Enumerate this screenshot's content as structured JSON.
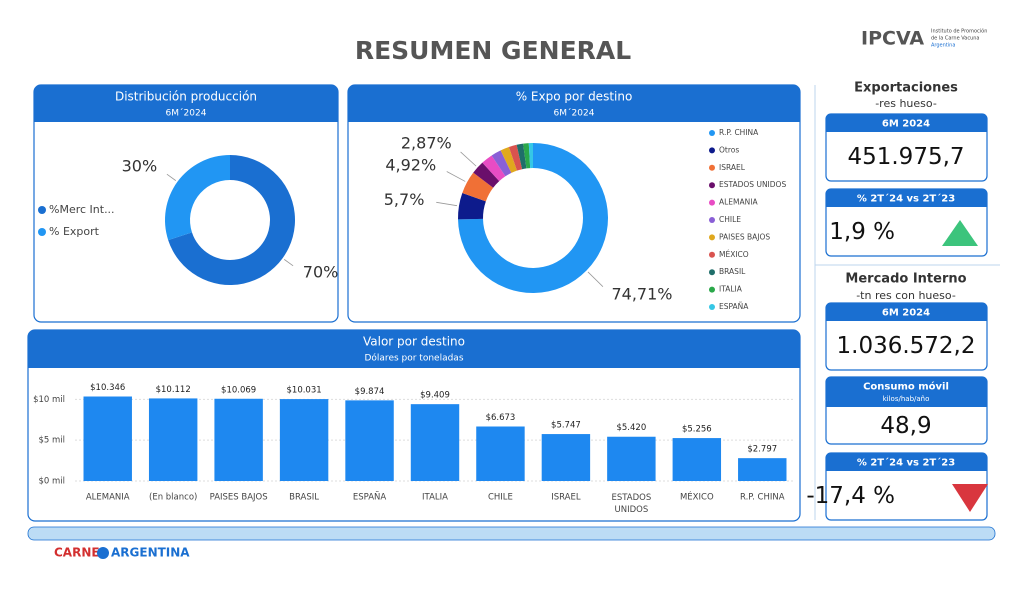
{
  "header": {
    "title": "RESUMEN GENERAL",
    "logo": "IPCVA",
    "logo_subtitle": [
      "Instituto de Promoción",
      "de la Carne Vacuna",
      "Argentina"
    ]
  },
  "chart_data": [
    {
      "type": "donut",
      "title": "Distribución producción",
      "subtitle": "6M´2024",
      "legend": "left",
      "categories": [
        "%Merc Int...",
        "% Export"
      ],
      "values": [
        70,
        30
      ],
      "value_labels": [
        "70%",
        "30%"
      ],
      "colors": [
        "#1a6fd1",
        "#2196f3"
      ]
    },
    {
      "type": "donut",
      "title": "% Expo por destino",
      "subtitle": "6M´2024",
      "legend": "right",
      "categories": [
        "R.P. CHINA",
        "Otros",
        "ISRAEL",
        "ESTADOS UNIDOS",
        "ALEMANIA",
        "CHILE",
        "PAISES BAJOS",
        "MÉXICO",
        "BRASIL",
        "ITALIA",
        "ESPAÑA"
      ],
      "values": [
        74.71,
        5.7,
        4.92,
        2.87,
        2.5,
        2.2,
        1.9,
        1.7,
        1.4,
        1.2,
        0.9
      ],
      "value_labels": [
        "74,71%",
        "5,7%",
        "4,92%",
        "2,87%",
        null,
        null,
        null,
        null,
        null,
        null,
        null
      ],
      "colors": [
        "#2196f3",
        "#0d1b8c",
        "#f07036",
        "#6a0f6b",
        "#e84cc4",
        "#8a5fd6",
        "#e0a81e",
        "#d9534f",
        "#1f6e6a",
        "#2aa84a",
        "#35c7e6"
      ]
    },
    {
      "type": "bar",
      "title": "Valor por destino",
      "subtitle": "Dólares por toneladas",
      "color": "#1e88f0",
      "categories": [
        "ALEMANIA",
        "(En blanco)",
        "PAISES BAJOS",
        "BRASIL",
        "ESPAÑA",
        "ITALIA",
        "CHILE",
        "ISRAEL",
        "ESTADOS UNIDOS",
        "MÉXICO",
        "R.P. CHINA"
      ],
      "values": [
        10346,
        10112,
        10069,
        10031,
        9874,
        9409,
        6673,
        5747,
        5420,
        5256,
        2797
      ],
      "value_labels": [
        "$10.346",
        "$10.112",
        "$10.069",
        "$10.031",
        "$9.874",
        "$9.409",
        "$6.673",
        "$5.747",
        "$5.420",
        "$5.256",
        "$2.797"
      ],
      "ylim": [
        0,
        12000
      ],
      "yticks": [
        {
          "value": 0,
          "label": "$0 mil"
        },
        {
          "value": 5000,
          "label": "$5 mil"
        },
        {
          "value": 10000,
          "label": "$10 mil"
        }
      ],
      "grid": true
    }
  ],
  "kpis": {
    "exportaciones": {
      "title": "Exportaciones",
      "subtitle": "-res hueso-",
      "cards": [
        {
          "label": "6M 2024",
          "value": "451.975,7"
        },
        {
          "label": "% 2T´24 vs 2T´23",
          "value": "1,9 %"
        }
      ]
    },
    "mercado_interno": {
      "title": "Mercado Interno",
      "subtitle": "-tn res con hueso-",
      "cards": [
        {
          "label": "6M 2024",
          "value": "1.036.572,2"
        },
        {
          "label": "Consumo móvil",
          "sublabel": "kilos/hab/año",
          "value": "48,9"
        },
        {
          "label": "% 2T´24 vs 2T´23",
          "value": "-17,4 %"
        }
      ]
    }
  },
  "footer": {
    "left": "CARNE",
    "right": "ARGENTINA"
  }
}
